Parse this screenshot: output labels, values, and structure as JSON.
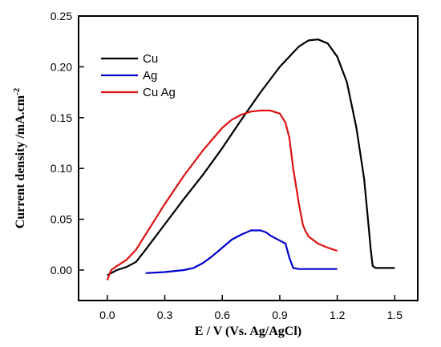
{
  "chart_data": {
    "type": "line",
    "xlabel": "E / V (Vs. Ag/AgCl)",
    "ylabel_main": "Current density /mA.cm",
    "ylabel_sup": "-2",
    "xlim": [
      -0.15,
      1.62
    ],
    "ylim": [
      -0.03,
      0.25
    ],
    "xticks": [
      0.0,
      0.3,
      0.6,
      0.9,
      1.2,
      1.5
    ],
    "xtick_labels": [
      "0.0",
      "0.3",
      "0.6",
      "0.9",
      "1.2",
      "1.5"
    ],
    "yticks": [
      0.0,
      0.05,
      0.1,
      0.15,
      0.2,
      0.25
    ],
    "ytick_labels": [
      "0.00",
      "0.05",
      "0.10",
      "0.15",
      "0.20",
      "0.25"
    ],
    "legend_position": "top-left",
    "series": [
      {
        "name": "Cu",
        "color": "#000000",
        "x": [
          0.0,
          0.05,
          0.1,
          0.15,
          0.2,
          0.3,
          0.4,
          0.5,
          0.6,
          0.7,
          0.8,
          0.9,
          1.0,
          1.05,
          1.1,
          1.15,
          1.2,
          1.25,
          1.3,
          1.34,
          1.36,
          1.375,
          1.385,
          1.4,
          1.5
        ],
        "y": [
          -0.005,
          0.0,
          0.003,
          0.008,
          0.02,
          0.045,
          0.07,
          0.094,
          0.12,
          0.148,
          0.175,
          0.2,
          0.22,
          0.226,
          0.227,
          0.223,
          0.21,
          0.185,
          0.14,
          0.09,
          0.05,
          0.02,
          0.004,
          0.002,
          0.002
        ]
      },
      {
        "name": "Ag",
        "color": "#0000cc",
        "x": [
          0.2,
          0.3,
          0.4,
          0.45,
          0.5,
          0.55,
          0.6,
          0.65,
          0.7,
          0.75,
          0.8,
          0.83,
          0.85,
          0.88,
          0.9,
          0.93,
          0.95,
          0.97,
          1.0,
          1.1,
          1.2
        ],
        "y": [
          -0.003,
          -0.002,
          0.0,
          0.002,
          0.007,
          0.014,
          0.022,
          0.03,
          0.035,
          0.039,
          0.039,
          0.037,
          0.034,
          0.031,
          0.029,
          0.026,
          0.012,
          0.002,
          0.001,
          0.001,
          0.001
        ]
      },
      {
        "name": "Cu Ag",
        "color": "#dd1111",
        "x": [
          0.0,
          0.02,
          0.05,
          0.1,
          0.15,
          0.2,
          0.3,
          0.4,
          0.5,
          0.6,
          0.65,
          0.7,
          0.75,
          0.8,
          0.85,
          0.9,
          0.93,
          0.95,
          0.97,
          1.0,
          1.02,
          1.03,
          1.05,
          1.1,
          1.15,
          1.2
        ],
        "y": [
          -0.01,
          0.0,
          0.004,
          0.01,
          0.02,
          0.035,
          0.065,
          0.093,
          0.118,
          0.14,
          0.148,
          0.153,
          0.156,
          0.157,
          0.157,
          0.154,
          0.145,
          0.13,
          0.1,
          0.065,
          0.045,
          0.04,
          0.033,
          0.026,
          0.022,
          0.019
        ]
      }
    ]
  }
}
